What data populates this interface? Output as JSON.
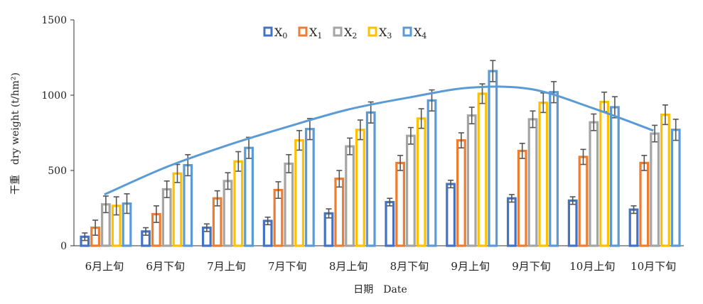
{
  "chart_data": {
    "type": "bar",
    "title": "",
    "xlabel": "日期　Date",
    "ylabel": "干重　dry weight (t/hm²)",
    "ylim": [
      0,
      1500
    ],
    "yticks": [
      "0",
      "500",
      "1000",
      "1500"
    ],
    "grid": false,
    "legend_position": "top-center",
    "categories": [
      "6月上旬",
      "6月下旬",
      "7月上旬",
      "7月下旬",
      "8月上旬",
      "8月下旬",
      "9月上旬",
      "9月下旬",
      "10月上旬",
      "10月下旬"
    ],
    "series": [
      {
        "name": "X",
        "sub": "0",
        "color": "#4472C4",
        "values": [
          60,
          95,
          120,
          165,
          215,
          290,
          410,
          315,
          300,
          240
        ],
        "errors": [
          25,
          25,
          25,
          25,
          30,
          25,
          25,
          25,
          25,
          25
        ]
      },
      {
        "name": "X",
        "sub": "1",
        "color": "#ED7D31",
        "values": [
          120,
          210,
          315,
          370,
          445,
          550,
          700,
          630,
          590,
          550
        ],
        "errors": [
          50,
          55,
          50,
          55,
          55,
          50,
          50,
          50,
          50,
          50
        ]
      },
      {
        "name": "X",
        "sub": "2",
        "color": "#A5A5A5",
        "values": [
          275,
          375,
          430,
          545,
          660,
          730,
          865,
          840,
          820,
          745
        ],
        "errors": [
          55,
          55,
          55,
          60,
          55,
          55,
          55,
          55,
          55,
          55
        ]
      },
      {
        "name": "X",
        "sub": "3",
        "color": "#FFC000",
        "values": [
          265,
          480,
          560,
          700,
          770,
          845,
          1010,
          950,
          955,
          870
        ],
        "errors": [
          60,
          60,
          65,
          65,
          65,
          65,
          65,
          65,
          65,
          65
        ]
      },
      {
        "name": "X",
        "sub": "4",
        "color": "#5B9BD5",
        "values": [
          280,
          535,
          650,
          775,
          885,
          965,
          1160,
          1020,
          920,
          770
        ],
        "errors": [
          65,
          70,
          70,
          70,
          70,
          70,
          70,
          70,
          70,
          70
        ]
      }
    ],
    "trendline": {
      "color": "#5B9BD5",
      "values": [
        340,
        520,
        665,
        790,
        905,
        985,
        1050,
        1040,
        915,
        765
      ]
    }
  }
}
